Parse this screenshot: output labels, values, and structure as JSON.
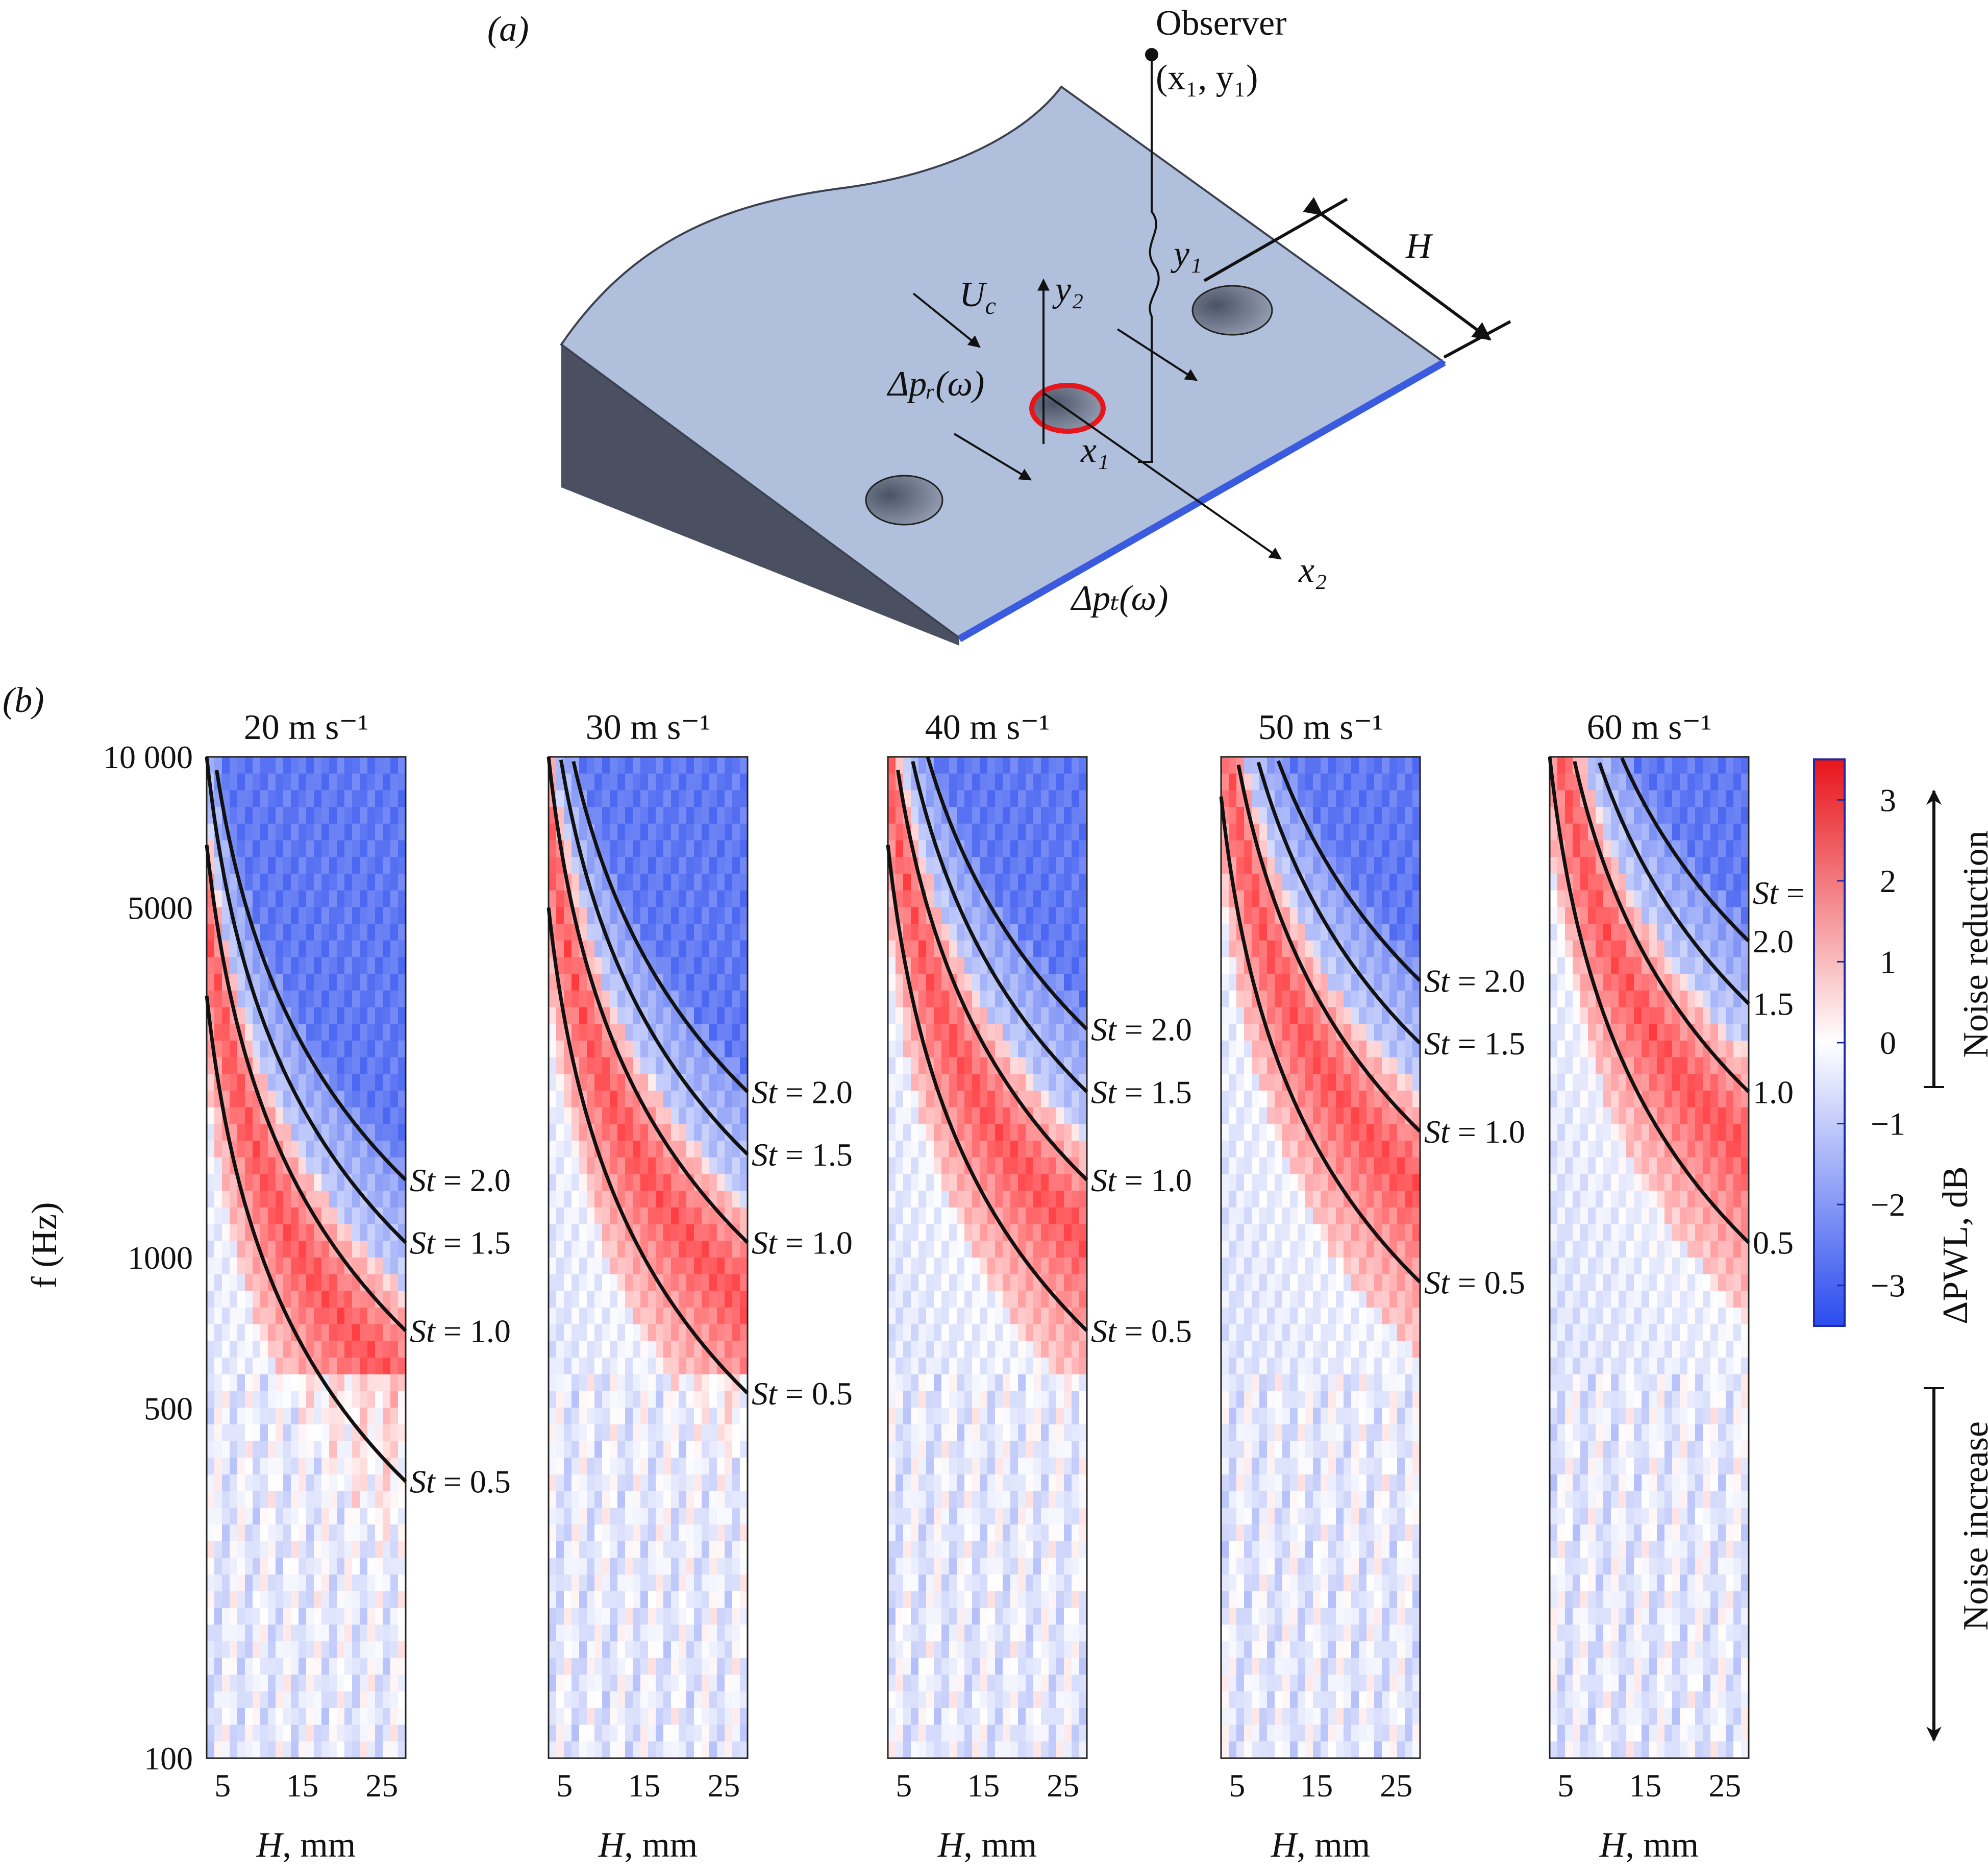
{
  "panel_a": {
    "label": "(a)",
    "observer_label": "Observer",
    "observer_coords": "(x₁, y₁)",
    "Uc": "Uc",
    "y2": "y₂",
    "y1": "y₁",
    "H": "H",
    "dp_r": "Δpᵣ(ω)",
    "x1": "x₁",
    "x2": "x₂",
    "dp_t": "Δpₜ(ω)"
  },
  "panel_b": {
    "label": "(b)",
    "ylabel": "f (Hz)",
    "xlabel": "H, mm",
    "colorbar": {
      "label": "ΔPWL, dB",
      "ticks": [
        "3",
        "2",
        "1",
        "0",
        "−1",
        "−2",
        "−3"
      ],
      "noise_reduction": "Noise reduction",
      "noise_increase": "Noise increase"
    }
  },
  "chart_data": {
    "type": "heatmap",
    "y_ticks": [
      "10 000",
      "5000",
      "1000",
      "500",
      "100"
    ],
    "x_ticks": [
      "5",
      "15",
      "25"
    ],
    "ylim": [
      100,
      10000
    ],
    "xlim": [
      3,
      28
    ],
    "yscale": "log",
    "clim": [
      -3.5,
      3.5
    ],
    "panels": [
      {
        "title": "20 m s⁻¹",
        "U": 20,
        "st_labels": [
          "St = 2.0",
          "St = 1.5",
          "St = 1.0",
          "St = 0.5"
        ]
      },
      {
        "title": "30 m s⁻¹",
        "U": 30,
        "st_labels": [
          "St = 2.0",
          "St = 1.5",
          "St = 1.0",
          "St = 0.5"
        ]
      },
      {
        "title": "40 m s⁻¹",
        "U": 40,
        "st_labels": [
          "St = 2.0",
          "St = 1.5",
          "St = 1.0",
          "St = 0.5"
        ]
      },
      {
        "title": "50 m s⁻¹",
        "U": 50,
        "st_labels": [
          "St = 2.0",
          "St = 1.5",
          "St = 1.0",
          "St = 0.5"
        ]
      },
      {
        "title": "60 m s⁻¹",
        "U": 60,
        "st_labels": [
          "2.0",
          "1.5",
          "1.0",
          "0.5"
        ],
        "st_header": "St ="
      }
    ]
  }
}
